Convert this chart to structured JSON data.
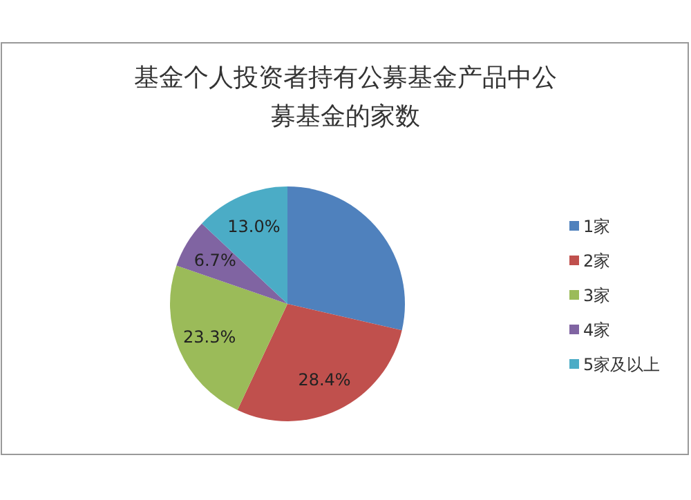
{
  "chart_data": {
    "type": "pie",
    "title": "基金个人投资者持有公募基金产品中公募基金的家数",
    "categories": [
      "1家",
      "2家",
      "3家",
      "4家",
      "5家及以上"
    ],
    "values": [
      28.6,
      28.4,
      23.3,
      6.7,
      13.0
    ],
    "value_labels": [
      null,
      "28.4%",
      "23.3%",
      "6.7%",
      "13.0%"
    ],
    "colors": [
      "#4f81bd",
      "#c0504d",
      "#9bbb59",
      "#8064a2",
      "#4bacc6"
    ],
    "legend": "right"
  }
}
